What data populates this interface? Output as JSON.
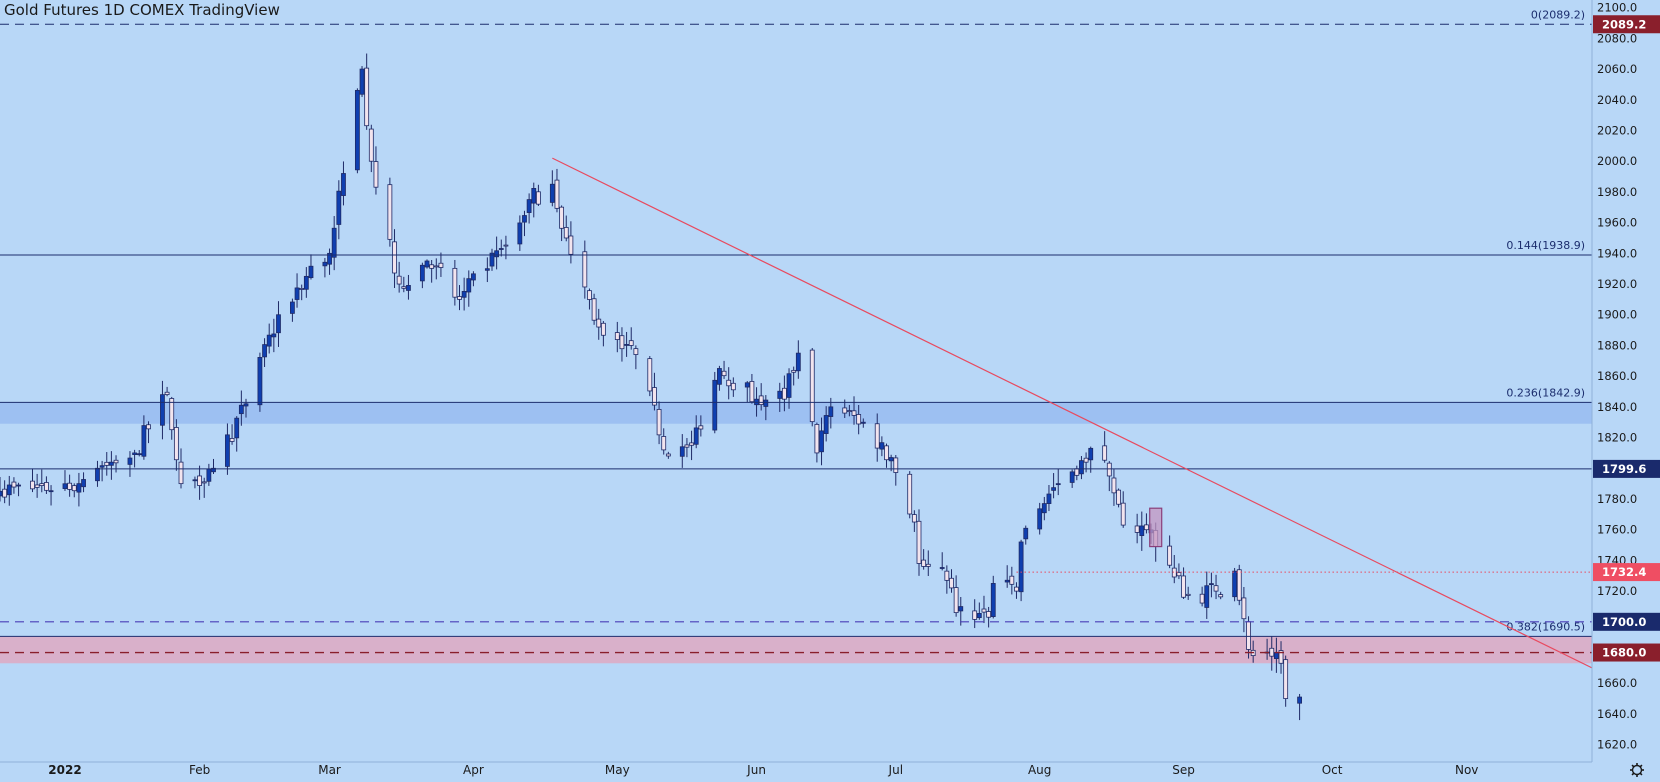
{
  "header": {
    "title": "Gold Futures 1D COMEX TradingView"
  },
  "theme": {
    "background": "#b8d7f7",
    "up_color": "#0f3fb0",
    "down_color": "#f2e4ee",
    "trendline_color": "#e84a5f",
    "level_line_color": "#1c2e6e",
    "zone_blue": "#9dc0f2",
    "zone_pink": "#d9b0ca",
    "badge_dark": "#8a1f2c",
    "badge_navy": "#1a2a6c",
    "badge_red": "#ef4e63"
  },
  "footer": {
    "settings_icon": "gear-icon"
  },
  "chart_data": {
    "type": "candlestick",
    "title": "Gold Futures 1D COMEX TradingView",
    "ylim": [
      1610,
      2105
    ],
    "y_ticks": [
      1620,
      1640,
      1660,
      1680,
      1700,
      1720,
      1740,
      1760,
      1780,
      1800,
      1820,
      1840,
      1860,
      1880,
      1900,
      1920,
      1940,
      1960,
      1980,
      2000,
      2020,
      2040,
      2060,
      2080,
      2100
    ],
    "x_ticks": [
      {
        "date": "2022-01-03",
        "label": "2022",
        "bold": true
      },
      {
        "date": "2022-02-01",
        "label": "Feb"
      },
      {
        "date": "2022-03-01",
        "label": "Mar"
      },
      {
        "date": "2022-04-01",
        "label": "Apr"
      },
      {
        "date": "2022-05-02",
        "label": "May"
      },
      {
        "date": "2022-06-01",
        "label": "Jun"
      },
      {
        "date": "2022-07-01",
        "label": "Jul"
      },
      {
        "date": "2022-08-01",
        "label": "Aug"
      },
      {
        "date": "2022-09-01",
        "label": "Sep"
      },
      {
        "date": "2022-10-03",
        "label": "Oct"
      },
      {
        "date": "2022-11-01",
        "label": "Nov"
      }
    ],
    "x_range": [
      "2021-12-20",
      "2022-11-28"
    ],
    "trading_days": 240,
    "anchors": [
      {
        "date": "2021-12-20",
        "close": 1785
      },
      {
        "date": "2022-01-06",
        "close": 1790
      },
      {
        "date": "2022-01-10",
        "close": 1800
      },
      {
        "date": "2022-01-18",
        "close": 1810
      },
      {
        "date": "2022-01-25",
        "close": 1848
      },
      {
        "date": "2022-01-28",
        "close": 1790
      },
      {
        "date": "2022-02-04",
        "close": 1800
      },
      {
        "date": "2022-02-11",
        "close": 1842
      },
      {
        "date": "2022-02-18",
        "close": 1900
      },
      {
        "date": "2022-02-24",
        "close": 1925
      },
      {
        "date": "2022-03-01",
        "close": 1940
      },
      {
        "date": "2022-03-04",
        "close": 1992
      },
      {
        "date": "2022-03-08",
        "close": 2060
      },
      {
        "date": "2022-03-10",
        "close": 2000
      },
      {
        "date": "2022-03-16",
        "close": 1920
      },
      {
        "date": "2022-03-22",
        "close": 1935
      },
      {
        "date": "2022-03-29",
        "close": 1910
      },
      {
        "date": "2022-04-04",
        "close": 1930
      },
      {
        "date": "2022-04-08",
        "close": 1945
      },
      {
        "date": "2022-04-13",
        "close": 1975
      },
      {
        "date": "2022-04-18",
        "close": 1985
      },
      {
        "date": "2022-04-21",
        "close": 1950
      },
      {
        "date": "2022-04-28",
        "close": 1892
      },
      {
        "date": "2022-05-05",
        "close": 1880
      },
      {
        "date": "2022-05-13",
        "close": 1808
      },
      {
        "date": "2022-05-18",
        "close": 1815
      },
      {
        "date": "2022-05-24",
        "close": 1865
      },
      {
        "date": "2022-06-01",
        "close": 1845
      },
      {
        "date": "2022-06-07",
        "close": 1845
      },
      {
        "date": "2022-06-10",
        "close": 1875
      },
      {
        "date": "2022-06-14",
        "close": 1810
      },
      {
        "date": "2022-06-17",
        "close": 1840
      },
      {
        "date": "2022-06-24",
        "close": 1830
      },
      {
        "date": "2022-06-30",
        "close": 1807
      },
      {
        "date": "2022-07-05",
        "close": 1765
      },
      {
        "date": "2022-07-06",
        "close": 1738
      },
      {
        "date": "2022-07-12",
        "close": 1727
      },
      {
        "date": "2022-07-14",
        "close": 1706
      },
      {
        "date": "2022-07-21",
        "close": 1703
      },
      {
        "date": "2022-07-22",
        "close": 1725
      },
      {
        "date": "2022-07-27",
        "close": 1720
      },
      {
        "date": "2022-07-28",
        "close": 1752
      },
      {
        "date": "2022-08-02",
        "close": 1777
      },
      {
        "date": "2022-08-05",
        "close": 1790
      },
      {
        "date": "2022-08-10",
        "close": 1805
      },
      {
        "date": "2022-08-12",
        "close": 1813
      },
      {
        "date": "2022-08-16",
        "close": 1795
      },
      {
        "date": "2022-08-19",
        "close": 1763
      },
      {
        "date": "2022-08-24",
        "close": 1760
      },
      {
        "date": "2022-08-26",
        "close": 1749
      },
      {
        "date": "2022-08-31",
        "close": 1730
      },
      {
        "date": "2022-09-01",
        "close": 1716
      },
      {
        "date": "2022-09-08",
        "close": 1720
      },
      {
        "date": "2022-09-12",
        "close": 1733
      },
      {
        "date": "2022-09-15",
        "close": 1682
      },
      {
        "date": "2022-09-16",
        "close": 1678
      },
      {
        "date": "2022-09-21",
        "close": 1680
      },
      {
        "date": "2022-09-22",
        "close": 1673
      },
      {
        "date": "2022-09-23",
        "close": 1650
      },
      {
        "date": "2022-09-26",
        "close": 1651
      }
    ],
    "last_candle": {
      "date": "2022-09-26",
      "open": 1647,
      "high": 1653,
      "low": 1636,
      "close": 1651
    },
    "horizontal_levels": [
      {
        "label": "0(2089.2)",
        "value": 2089.2,
        "style": "dashed",
        "badge": "2089.2",
        "badge_color": "#8a1f2c"
      },
      {
        "label": "0.144(1938.9)",
        "value": 1938.9,
        "style": "solid"
      },
      {
        "label": "0.236(1842.9)",
        "value": 1842.9,
        "style": "solid"
      },
      {
        "label": "",
        "value": 1799.6,
        "style": "solid",
        "badge": "1799.6",
        "badge_color": "#1a2a6c"
      },
      {
        "label": "0.382(1690.5)",
        "value": 1690.5,
        "style": "solid"
      },
      {
        "label": "",
        "value": 1700,
        "style": "dashed",
        "badge": "1700.0",
        "badge_color": "#1a2a6c"
      },
      {
        "label": "",
        "value": 1680,
        "style": "dashed",
        "badge": "1680.0",
        "badge_color": "#8a1f2c"
      }
    ],
    "price_badges": [
      {
        "value": 1732.4,
        "text": "1732.4",
        "color": "#ef4e63"
      }
    ],
    "zones": [
      {
        "from": 1829,
        "to": 1843,
        "color": "#9dc0f2"
      },
      {
        "from": 1673,
        "to": 1690.5,
        "color": "#d9b0ca"
      }
    ],
    "trendline": {
      "from": {
        "date": "2022-04-18",
        "value": 2002
      },
      "to": {
        "date": "2022-11-28",
        "value": 1670
      }
    },
    "dotted_line": {
      "from_date": "2022-07-27",
      "to_date": "2022-11-28",
      "value": 1732.4
    },
    "highlight_box": {
      "date": "2022-08-26",
      "open": 1774,
      "close": 1749
    }
  }
}
